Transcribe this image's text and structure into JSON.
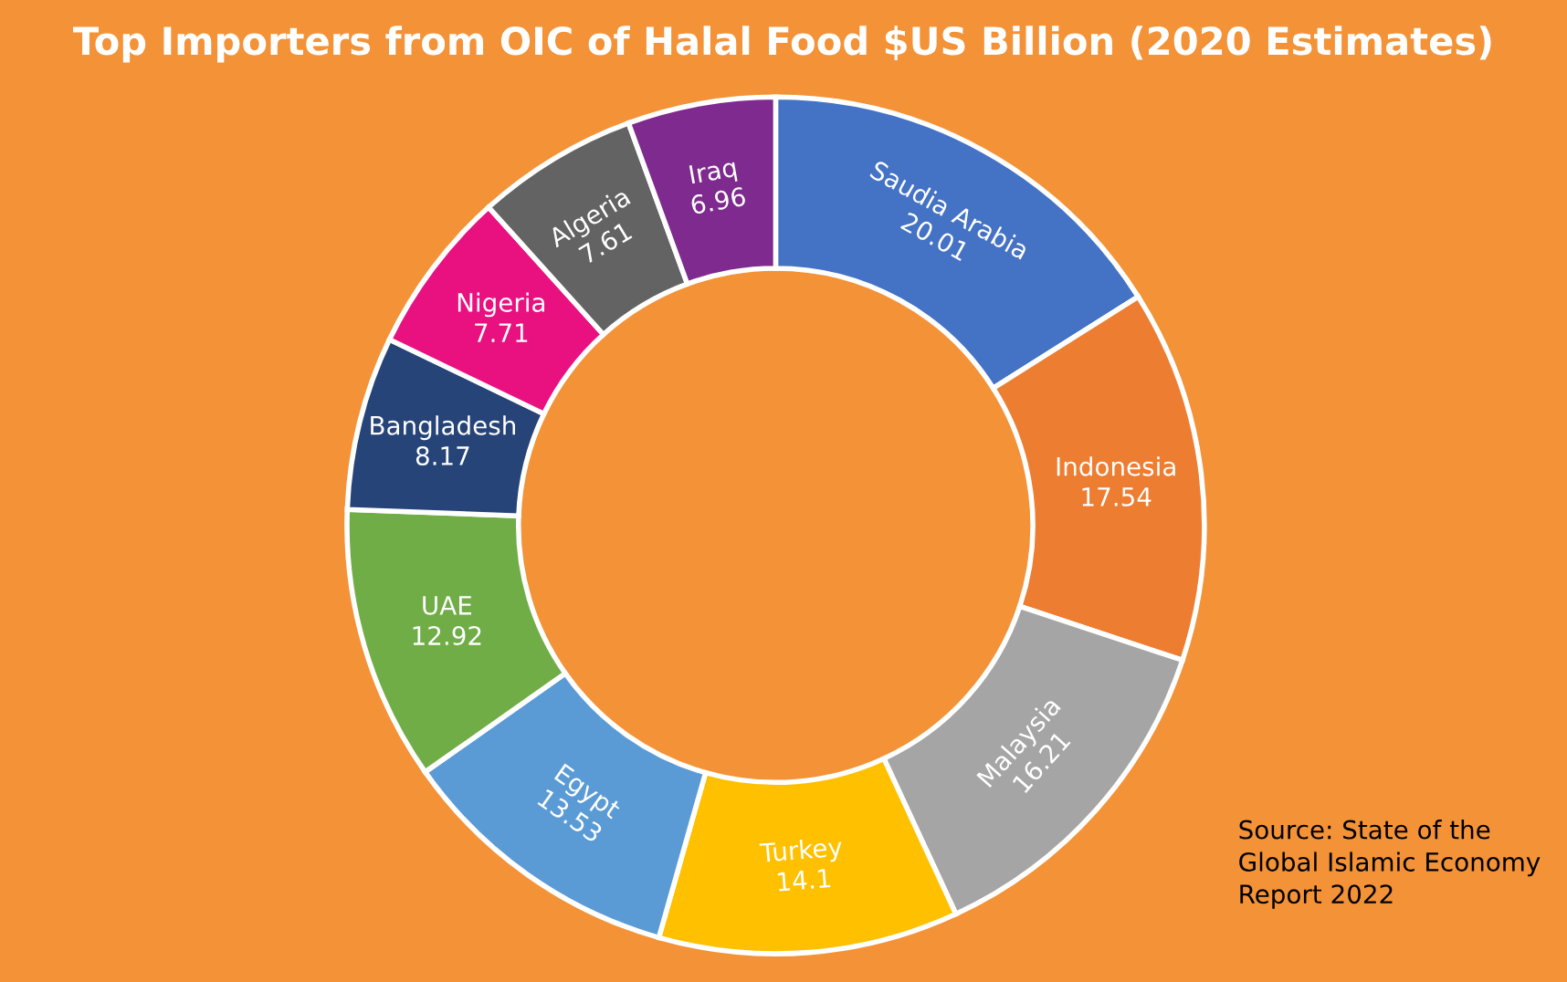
{
  "chart_data": {
    "type": "donut",
    "title": "Top Importers from OIC of Halal Food $US Billion (2020 Estimates)",
    "categories": [
      "Saudia Arabia",
      "Indonesia",
      "Malaysia",
      "Turkey",
      "Egypt",
      "UAE",
      "Bangladesh",
      "Nigeria",
      "Algeria",
      "Iraq"
    ],
    "values": [
      20.01,
      17.54,
      16.21,
      14.1,
      13.53,
      12.92,
      8.17,
      7.71,
      7.61,
      6.96
    ],
    "colors": [
      "#4472c4",
      "#ed7d31",
      "#a5a5a5",
      "#ffc000",
      "#5b9bd5",
      "#70ad47",
      "#264478",
      "#e8117f",
      "#636363",
      "#7e2a8e"
    ],
    "data_labels": true,
    "legend": false,
    "annotations": [
      "Source: State of the\nGlobal Islamic Economy\nReport 2022"
    ]
  }
}
